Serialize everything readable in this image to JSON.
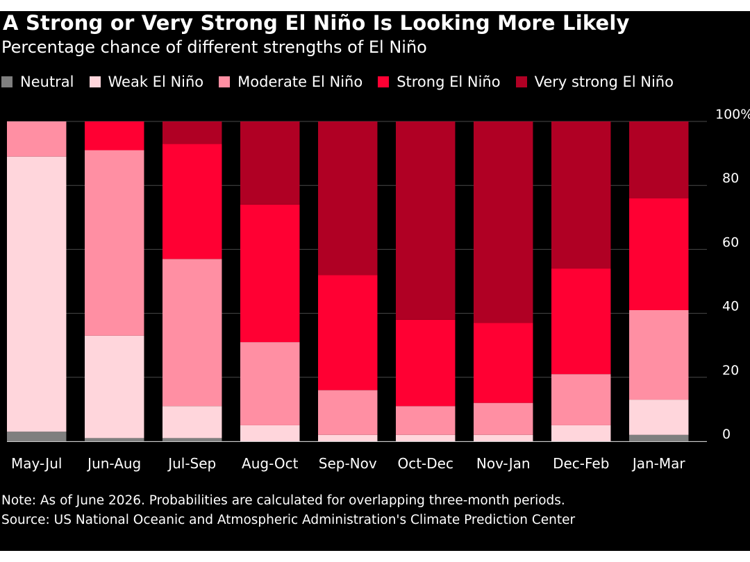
{
  "title": "A Strong or Very Strong El Niño Is Looking More Likely",
  "subtitle": "Percentage chance of different strengths of El Niño",
  "legend": [
    {
      "label": "Neutral",
      "color": "#7f7f7f"
    },
    {
      "label": "Weak El Niño",
      "color": "#ffd6dc"
    },
    {
      "label": "Moderate El Niño",
      "color": "#ff8fa3"
    },
    {
      "label": "Strong El Niño",
      "color": "#ff0033"
    },
    {
      "label": "Very strong El Niño",
      "color": "#b00024"
    }
  ],
  "chart_data": {
    "type": "bar",
    "stacked": true,
    "categories": [
      "May-Jul",
      "Jun-Aug",
      "Jul-Sep",
      "Aug-Oct",
      "Sep-Nov",
      "Oct-Dec",
      "Nov-Jan",
      "Dec-Feb",
      "Jan-Mar"
    ],
    "series": [
      {
        "name": "Neutral",
        "color": "#7f7f7f",
        "values": [
          3,
          1,
          1,
          0,
          0,
          0,
          0,
          0,
          2
        ]
      },
      {
        "name": "Weak El Niño",
        "color": "#ffd6dc",
        "values": [
          86,
          32,
          10,
          5,
          2,
          2,
          2,
          5,
          11
        ]
      },
      {
        "name": "Moderate El Niño",
        "color": "#ff8fa3",
        "values": [
          11,
          58,
          46,
          26,
          14,
          9,
          10,
          16,
          28
        ]
      },
      {
        "name": "Strong El Niño",
        "color": "#ff0033",
        "values": [
          0,
          9,
          36,
          43,
          36,
          27,
          25,
          33,
          35
        ]
      },
      {
        "name": "Very strong El Niño",
        "color": "#b00024",
        "values": [
          0,
          0,
          7,
          26,
          48,
          62,
          63,
          46,
          24
        ]
      }
    ],
    "ylim": [
      0,
      100
    ],
    "yticks": [
      "0",
      "20",
      "40",
      "60",
      "80",
      "100%"
    ],
    "ytick_values": [
      0,
      20,
      40,
      60,
      80,
      100
    ],
    "y_axis_side": "right",
    "grid": true
  },
  "note": "Note: As of June 2026. Probabilities are calculated for overlapping three-month periods.",
  "source": "Source: US National Oceanic and Atmospheric Administration's Climate Prediction Center"
}
